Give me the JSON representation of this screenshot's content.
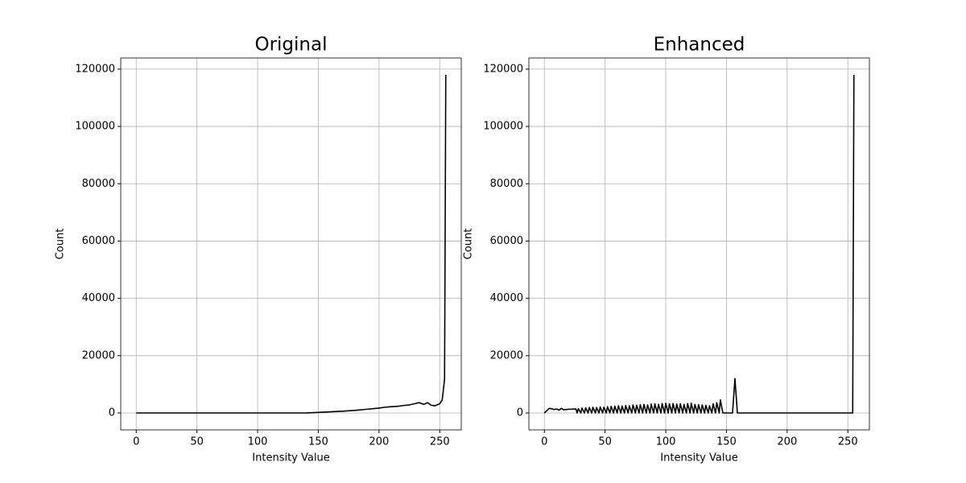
{
  "chart_data": [
    {
      "type": "line",
      "title": "Original",
      "xlabel": "Intensity Value",
      "ylabel": "Count",
      "x": [
        0,
        140,
        150,
        160,
        170,
        180,
        190,
        200,
        205,
        210,
        215,
        220,
        225,
        230,
        233,
        237,
        240,
        243,
        246,
        250,
        252,
        253,
        254,
        255
      ],
      "series": [
        {
          "color": "#000000",
          "values": [
            0,
            0,
            200,
            400,
            600,
            900,
            1300,
            1700,
            2000,
            2200,
            2300,
            2600,
            2800,
            3300,
            3600,
            3000,
            3600,
            2700,
            2500,
            3200,
            4500,
            8000,
            12000,
            118000
          ]
        }
      ],
      "xlim": [
        -12.75,
        267.75
      ],
      "ylim": [
        -5900,
        123900
      ],
      "xticks": [
        0,
        50,
        100,
        150,
        200,
        250
      ],
      "yticks": [
        0,
        20000,
        40000,
        60000,
        80000,
        100000,
        120000
      ],
      "grid": true
    },
    {
      "type": "line",
      "title": "Enhanced",
      "xlabel": "Intensity Value",
      "ylabel": "Count",
      "x": [
        0,
        2,
        4,
        6,
        8,
        10,
        12,
        14,
        16,
        18,
        20,
        22,
        24,
        26,
        27,
        28,
        30,
        31,
        33,
        34,
        36,
        37,
        39,
        40,
        42,
        43,
        45,
        46,
        48,
        49,
        51,
        52,
        54,
        55,
        57,
        58,
        60,
        61,
        63,
        64,
        66,
        67,
        69,
        70,
        72,
        73,
        75,
        76,
        78,
        79,
        81,
        82,
        84,
        85,
        87,
        88,
        90,
        91,
        93,
        94,
        96,
        97,
        99,
        100,
        102,
        103,
        105,
        106,
        108,
        109,
        111,
        112,
        114,
        115,
        117,
        118,
        120,
        121,
        123,
        124,
        126,
        127,
        129,
        130,
        132,
        133,
        135,
        136,
        138,
        139,
        141,
        142,
        144,
        145,
        147,
        155,
        157,
        159,
        254,
        255
      ],
      "series": [
        {
          "color": "#000000",
          "values": [
            0,
            800,
            1600,
            1500,
            1200,
            1400,
            1000,
            1600,
            1100,
            1200,
            1300,
            1300,
            1400,
            1400,
            0,
            1500,
            0,
            1700,
            0,
            1800,
            0,
            1900,
            0,
            2000,
            0,
            1900,
            0,
            2100,
            0,
            2000,
            0,
            2200,
            0,
            2300,
            0,
            2400,
            0,
            2500,
            0,
            2400,
            0,
            2600,
            0,
            2500,
            0,
            2800,
            0,
            2700,
            0,
            2900,
            0,
            3000,
            0,
            2800,
            0,
            3100,
            0,
            3200,
            0,
            3000,
            0,
            3300,
            0,
            3400,
            0,
            3200,
            0,
            3300,
            0,
            3100,
            0,
            3200,
            0,
            3000,
            0,
            3300,
            0,
            3400,
            0,
            3000,
            0,
            2900,
            0,
            2800,
            0,
            2700,
            0,
            2500,
            0,
            3200,
            0,
            3600,
            0,
            4600,
            0,
            0,
            12000,
            0,
            0,
            118000
          ]
        }
      ],
      "xlim": [
        -12.75,
        267.75
      ],
      "ylim": [
        -5900,
        123900
      ],
      "xticks": [
        0,
        50,
        100,
        150,
        200,
        250
      ],
      "yticks": [
        0,
        20000,
        40000,
        60000,
        80000,
        100000,
        120000
      ],
      "grid": true
    }
  ]
}
